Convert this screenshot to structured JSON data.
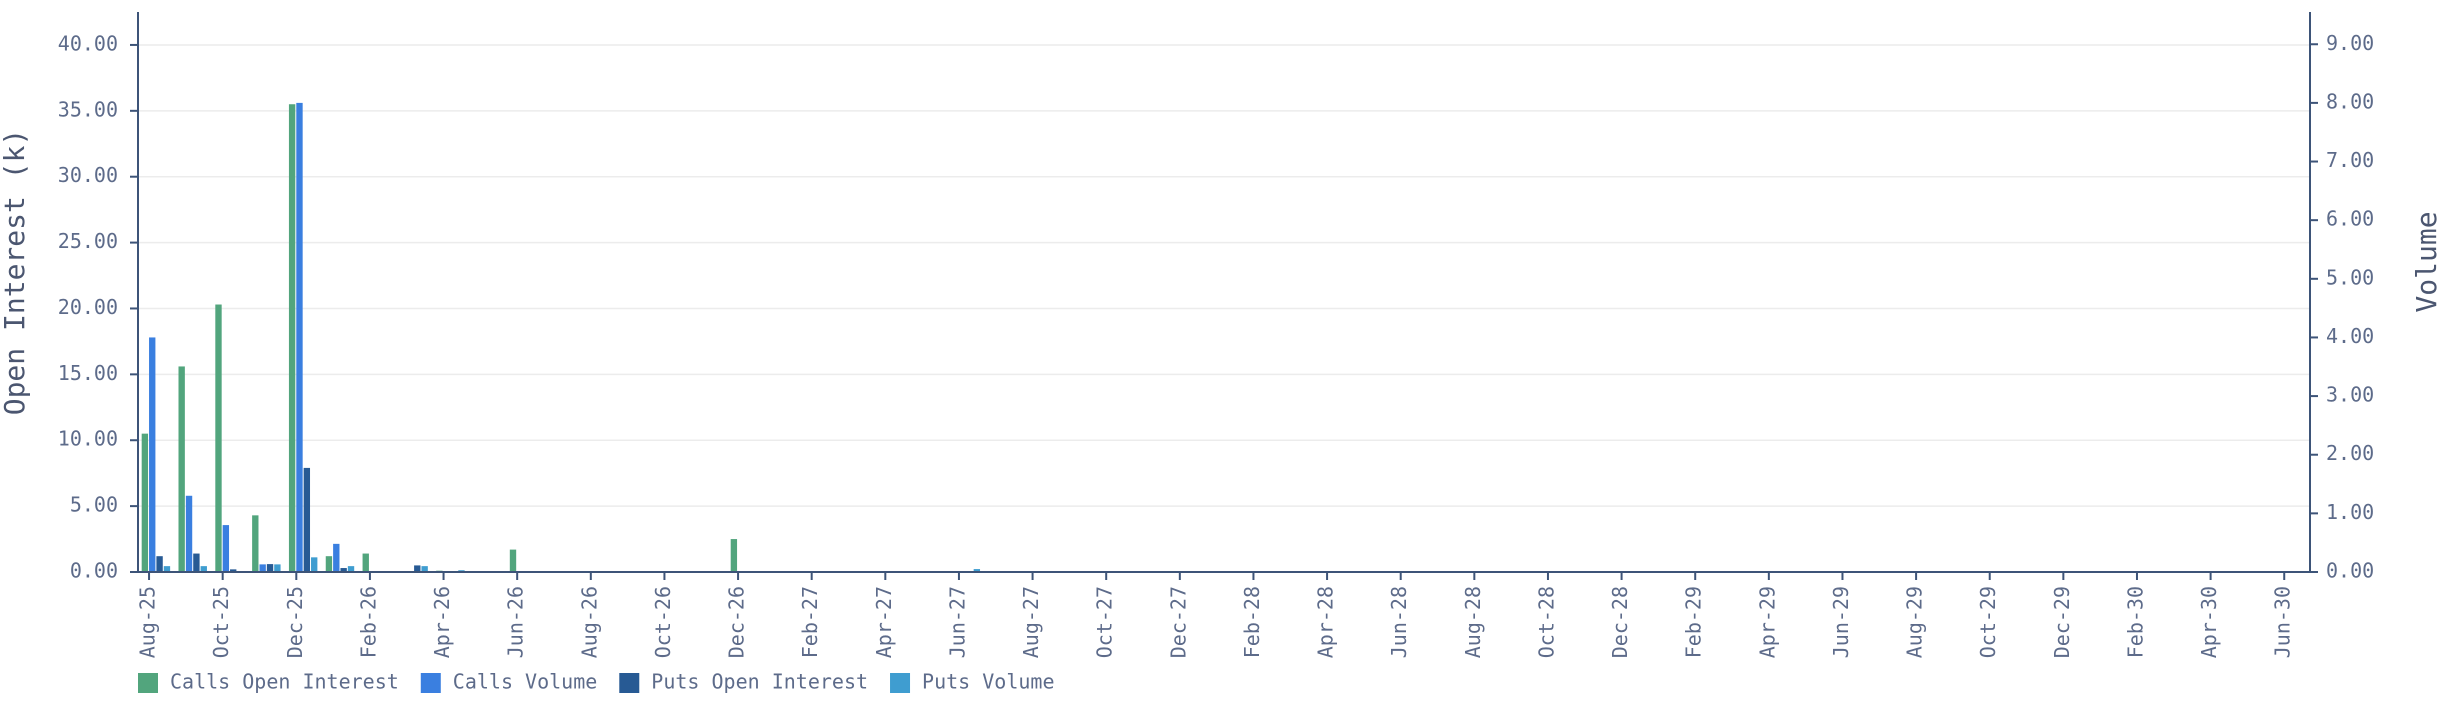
{
  "chart_data": {
    "type": "bar",
    "categories": [
      "Aug-25",
      null,
      "Oct-25",
      null,
      "Dec-25",
      null,
      "Feb-26",
      null,
      "Apr-26",
      null,
      "Jun-26",
      null,
      "Aug-26",
      null,
      "Oct-26",
      null,
      "Dec-26",
      null,
      "Feb-27",
      null,
      "Apr-27",
      null,
      "Jun-27",
      null,
      "Aug-27",
      null,
      "Oct-27",
      null,
      "Dec-27",
      null,
      "Feb-28",
      null,
      "Apr-28",
      null,
      "Jun-28",
      null,
      "Aug-28",
      null,
      "Oct-28",
      null,
      "Dec-28",
      null,
      "Feb-29",
      null,
      "Apr-29",
      null,
      "Jun-29",
      null,
      "Aug-29",
      null,
      "Oct-29",
      null,
      "Dec-29",
      null,
      "Feb-30",
      null,
      "Apr-30",
      null,
      "Jun-30"
    ],
    "series": [
      {
        "name": "Calls Open Interest",
        "color": "#52a57d",
        "values": [
          10.5,
          15.6,
          20.3,
          4.3,
          35.5,
          1.2,
          1.4,
          0,
          0.1,
          null,
          1.7,
          null,
          null,
          null,
          null,
          null,
          2.5,
          null,
          null,
          null,
          null,
          null,
          0,
          null,
          null,
          null,
          null,
          null,
          null,
          null,
          null,
          null,
          null,
          null,
          null,
          null,
          null,
          null,
          null,
          null,
          null,
          null,
          null,
          null,
          null,
          null,
          null,
          null,
          null,
          null,
          null,
          null,
          null,
          null,
          null,
          null,
          null,
          null,
          null
        ]
      },
      {
        "name": "Calls Volume",
        "color": "#3a7fe0",
        "axis": "y2",
        "values": [
          4.0,
          1.3,
          0.8,
          0.13,
          8.0,
          0.48,
          0,
          0,
          0,
          null,
          0,
          null,
          null,
          null,
          null,
          null,
          0,
          null,
          null,
          null,
          null,
          null,
          0,
          null,
          null,
          null,
          null,
          null,
          null,
          null,
          null,
          null,
          null,
          null,
          null,
          null,
          null,
          null,
          null,
          null,
          null,
          null,
          null,
          null,
          null,
          null,
          null,
          null,
          null,
          null,
          null,
          null,
          null,
          null,
          null,
          null,
          null,
          null,
          null
        ]
      },
      {
        "name": "Puts Open Interest",
        "color": "#275a94",
        "values": [
          1.2,
          1.4,
          0.2,
          0.6,
          7.9,
          0.3,
          0,
          0.5,
          0,
          null,
          0,
          null,
          null,
          null,
          null,
          null,
          0,
          null,
          null,
          null,
          null,
          null,
          0,
          null,
          null,
          null,
          null,
          null,
          null,
          null,
          null,
          null,
          null,
          null,
          null,
          null,
          null,
          null,
          null,
          null,
          null,
          null,
          null,
          null,
          null,
          null,
          null,
          null,
          null,
          null,
          null,
          null,
          null,
          null,
          null,
          null,
          null,
          null,
          null
        ]
      },
      {
        "name": "Puts Volume",
        "color": "#3f9dd0",
        "axis": "y2",
        "values": [
          0.1,
          0.1,
          0,
          0.13,
          0.25,
          0.1,
          0,
          0.1,
          0.03,
          null,
          0,
          null,
          null,
          null,
          null,
          null,
          0,
          null,
          null,
          null,
          null,
          null,
          0.05,
          null,
          null,
          null,
          null,
          null,
          null,
          null,
          null,
          null,
          null,
          null,
          null,
          null,
          null,
          null,
          null,
          null,
          null,
          null,
          null,
          null,
          null,
          null,
          null,
          null,
          null,
          null,
          null,
          null,
          null,
          null,
          null,
          null,
          null,
          null,
          null
        ]
      }
    ],
    "y_label": "Open Interest (k)",
    "y2_label": "Volume",
    "ylim": [
      0,
      42.5
    ],
    "yticks": [
      {
        "value": 0,
        "label": "0.00"
      },
      {
        "value": 5,
        "label": "5.00"
      },
      {
        "value": 10,
        "label": "10.00"
      },
      {
        "value": 15,
        "label": "15.00"
      },
      {
        "value": 20,
        "label": "20.00"
      },
      {
        "value": 25,
        "label": "25.00"
      },
      {
        "value": 30,
        "label": "30.00"
      },
      {
        "value": 35,
        "label": "35.00"
      },
      {
        "value": 40,
        "label": "40.00"
      }
    ],
    "y2lim": [
      0,
      9.55
    ],
    "y2ticks": [
      {
        "value": 0,
        "label": "0.00"
      },
      {
        "value": 1,
        "label": "1.00"
      },
      {
        "value": 2,
        "label": "2.00"
      },
      {
        "value": 3,
        "label": "3.00"
      },
      {
        "value": 4,
        "label": "4.00"
      },
      {
        "value": 5,
        "label": "5.00"
      },
      {
        "value": 6,
        "label": "6.00"
      },
      {
        "value": 7,
        "label": "7.00"
      },
      {
        "value": 8,
        "label": "8.00"
      },
      {
        "value": 9,
        "label": "9.00"
      }
    ],
    "grid": true,
    "legend": "bottom-left"
  }
}
